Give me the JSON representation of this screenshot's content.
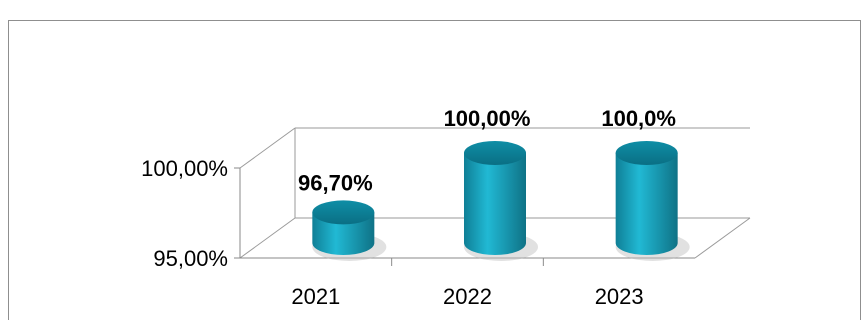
{
  "chart_data": {
    "type": "bar",
    "title": "",
    "categories": [
      "2021",
      "2022",
      "2023"
    ],
    "values": [
      96.7,
      100.0,
      100.0
    ],
    "data_labels": [
      "96,70%",
      "100,00%",
      "100,0%"
    ],
    "y_ticks": [
      "95,00%",
      "100,00%"
    ],
    "ylim": [
      95,
      100
    ],
    "xlabel": "",
    "ylabel": "",
    "grid": true,
    "legend": "none",
    "bar_color": "#1aa4bf",
    "bar_top_color": "#137f94"
  }
}
